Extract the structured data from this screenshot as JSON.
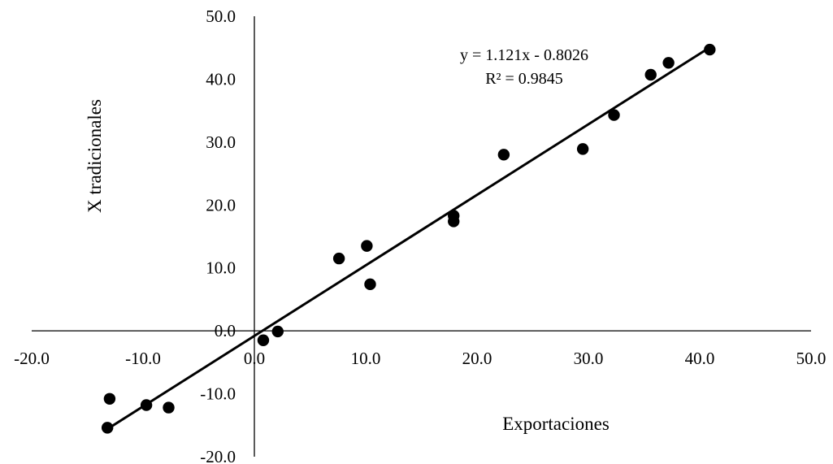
{
  "chart_data": {
    "type": "scatter",
    "xlabel": "Exportaciones",
    "ylabel": "X tradicionales",
    "xlim": [
      -20,
      50
    ],
    "ylim": [
      -20,
      50
    ],
    "x_ticks": [
      "-20.0",
      "-10.0",
      "0.0",
      "10.0",
      "20.0",
      "30.0",
      "40.0",
      "50.0"
    ],
    "y_ticks": [
      "50.0",
      "40.0",
      "30.0",
      "20.0",
      "10.0",
      "0.0",
      "-10.0",
      "-20.0"
    ],
    "x_tick_values": [
      -20,
      -10,
      0,
      10,
      20,
      30,
      40,
      50
    ],
    "y_tick_values": [
      50,
      40,
      30,
      20,
      10,
      0,
      -10,
      -20
    ],
    "grid": false,
    "legend": "none",
    "points": [
      {
        "x": -13.2,
        "y": -15.4
      },
      {
        "x": -13.0,
        "y": -10.8
      },
      {
        "x": -9.7,
        "y": -11.8
      },
      {
        "x": -7.7,
        "y": -12.2
      },
      {
        "x": 0.8,
        "y": -1.5
      },
      {
        "x": 2.1,
        "y": -0.1
      },
      {
        "x": 7.6,
        "y": 11.5
      },
      {
        "x": 10.1,
        "y": 13.5
      },
      {
        "x": 10.4,
        "y": 7.4
      },
      {
        "x": 17.9,
        "y": 18.3
      },
      {
        "x": 17.9,
        "y": 17.4
      },
      {
        "x": 22.4,
        "y": 28.0
      },
      {
        "x": 29.5,
        "y": 28.9
      },
      {
        "x": 32.3,
        "y": 34.3
      },
      {
        "x": 35.6,
        "y": 40.7
      },
      {
        "x": 37.2,
        "y": 42.6
      },
      {
        "x": 40.9,
        "y": 44.7
      }
    ],
    "trendline": {
      "slope": 1.121,
      "intercept": -0.8026,
      "x_range": [
        -13.2,
        40.9
      ],
      "equation": "y = 1.121x - 0.8026",
      "r_squared": "R² = 0.9845"
    },
    "colors": {
      "marker": "#000000",
      "line": "#000000",
      "axis": "#000000"
    }
  }
}
